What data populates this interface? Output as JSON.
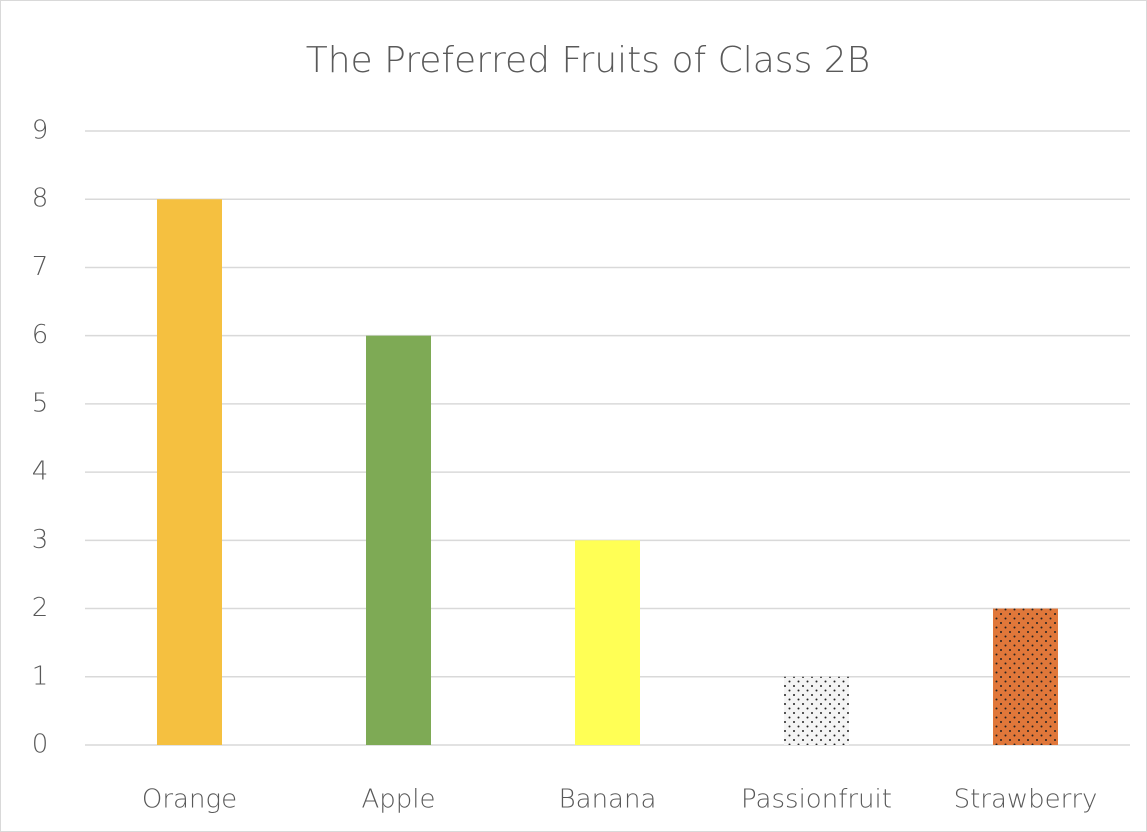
{
  "chart_data": {
    "type": "bar",
    "title": "The Preferred Fruits of Class 2B",
    "categories": [
      "Orange",
      "Apple",
      "Banana",
      "Passionfruit",
      "Strawberry"
    ],
    "values": [
      8,
      6,
      3,
      1,
      2
    ],
    "colors": [
      "#f5c040",
      "#7eaa55",
      "#ffff55",
      "#f4f4f4",
      "#e0773a"
    ],
    "patterns": [
      null,
      null,
      null,
      "dots",
      "dots"
    ],
    "ylim": [
      0,
      9
    ],
    "yticks": [
      0,
      1,
      2,
      3,
      4,
      5,
      6,
      7,
      8,
      9
    ],
    "grid": true
  }
}
